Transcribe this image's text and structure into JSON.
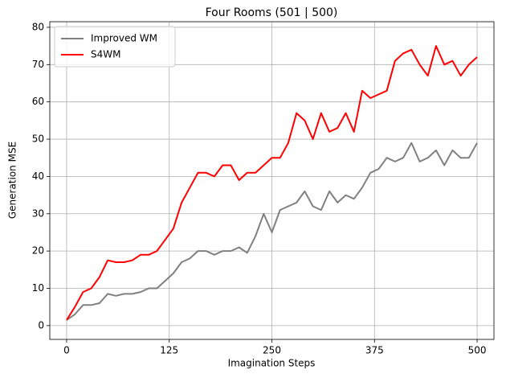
{
  "chart_data": {
    "type": "line",
    "title": "Four Rooms (501 | 500)",
    "xlabel": "Imagination Steps",
    "ylabel": "Generation MSE",
    "x": [
      0,
      10,
      20,
      30,
      40,
      50,
      60,
      70,
      80,
      90,
      100,
      110,
      120,
      130,
      140,
      150,
      160,
      170,
      180,
      190,
      200,
      210,
      220,
      230,
      240,
      250,
      260,
      270,
      280,
      290,
      300,
      310,
      320,
      330,
      340,
      350,
      360,
      370,
      380,
      390,
      400,
      410,
      420,
      430,
      440,
      450,
      460,
      470,
      480,
      490,
      500
    ],
    "series": [
      {
        "name": "Improved WM",
        "color": "#808080",
        "values": [
          1.5,
          3,
          5.5,
          5.5,
          6,
          8.5,
          8,
          8.5,
          8.5,
          9,
          10,
          10,
          12,
          14,
          17,
          18,
          20,
          20,
          19,
          20,
          20,
          21,
          19.5,
          24,
          30,
          25,
          31,
          32,
          33,
          36,
          32,
          31,
          36,
          33,
          35,
          34,
          37,
          41,
          42,
          45,
          44,
          45,
          49,
          44,
          45,
          47,
          43,
          47,
          45,
          45,
          49
        ]
      },
      {
        "name": "S4WM",
        "color": "#ff0000",
        "values": [
          1.5,
          5,
          9,
          10,
          13,
          17.5,
          17,
          17,
          17.5,
          19,
          19,
          20,
          23,
          26,
          33,
          37,
          41,
          41,
          40,
          43,
          43,
          39,
          41,
          41,
          43,
          45,
          45,
          49,
          57,
          55,
          50,
          57,
          52,
          53,
          57,
          52,
          63,
          61,
          62,
          63,
          71,
          73,
          74,
          70,
          67,
          75,
          70,
          71,
          67,
          70,
          72
        ]
      }
    ],
    "xlim": [
      -20.5,
      520.5
    ],
    "xticks": [
      0,
      125,
      250,
      375,
      500
    ],
    "ylim": [
      -3.7,
      81.5
    ],
    "yticks": [
      0,
      10,
      20,
      30,
      40,
      50,
      60,
      70,
      80
    ],
    "grid": true,
    "legend": "upper left"
  }
}
